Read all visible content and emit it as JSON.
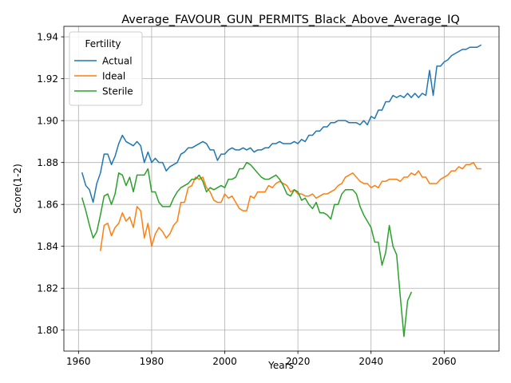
{
  "chart_data": {
    "type": "line",
    "title": "Average_FAVOUR_GUN_PERMITS_Black_Above_Average_IQ",
    "xlabel": "Years",
    "ylabel": "Score(1-2)",
    "xlim": [
      1956,
      2075
    ],
    "ylim": [
      1.79,
      1.945
    ],
    "xticks": [
      1960,
      1980,
      2000,
      2020,
      2040,
      2060
    ],
    "yticks": [
      1.8,
      1.82,
      1.84,
      1.86,
      1.88,
      1.9,
      1.92,
      1.94
    ],
    "grid": true,
    "legend": {
      "title": "Fertility",
      "position": "upper left"
    },
    "series": [
      {
        "name": "Actual",
        "color": "#1f77b4",
        "points": [
          [
            1961,
            1.875
          ],
          [
            1962,
            1.869
          ],
          [
            1963,
            1.867
          ],
          [
            1964,
            1.861
          ],
          [
            1965,
            1.87
          ],
          [
            1966,
            1.875
          ],
          [
            1967,
            1.884
          ],
          [
            1968,
            1.884
          ],
          [
            1969,
            1.879
          ],
          [
            1970,
            1.883
          ],
          [
            1971,
            1.889
          ],
          [
            1972,
            1.893
          ],
          [
            1973,
            1.89
          ],
          [
            1974,
            1.889
          ],
          [
            1975,
            1.888
          ],
          [
            1976,
            1.89
          ],
          [
            1977,
            1.888
          ],
          [
            1978,
            1.88
          ],
          [
            1979,
            1.885
          ],
          [
            1980,
            1.88
          ],
          [
            1981,
            1.882
          ],
          [
            1982,
            1.88
          ],
          [
            1983,
            1.88
          ],
          [
            1984,
            1.876
          ],
          [
            1985,
            1.878
          ],
          [
            1986,
            1.879
          ],
          [
            1987,
            1.88
          ],
          [
            1988,
            1.884
          ],
          [
            1989,
            1.885
          ],
          [
            1990,
            1.887
          ],
          [
            1991,
            1.887
          ],
          [
            1992,
            1.888
          ],
          [
            1993,
            1.889
          ],
          [
            1994,
            1.89
          ],
          [
            1995,
            1.889
          ],
          [
            1996,
            1.886
          ],
          [
            1997,
            1.886
          ],
          [
            1998,
            1.881
          ],
          [
            1999,
            1.884
          ],
          [
            2000,
            1.884
          ],
          [
            2001,
            1.886
          ],
          [
            2002,
            1.887
          ],
          [
            2003,
            1.886
          ],
          [
            2004,
            1.886
          ],
          [
            2005,
            1.887
          ],
          [
            2006,
            1.886
          ],
          [
            2007,
            1.887
          ],
          [
            2008,
            1.885
          ],
          [
            2009,
            1.886
          ],
          [
            2010,
            1.886
          ],
          [
            2011,
            1.887
          ],
          [
            2012,
            1.887
          ],
          [
            2013,
            1.889
          ],
          [
            2014,
            1.889
          ],
          [
            2015,
            1.89
          ],
          [
            2016,
            1.889
          ],
          [
            2017,
            1.889
          ],
          [
            2018,
            1.889
          ],
          [
            2019,
            1.89
          ],
          [
            2020,
            1.889
          ],
          [
            2021,
            1.891
          ],
          [
            2022,
            1.89
          ],
          [
            2023,
            1.893
          ],
          [
            2024,
            1.893
          ],
          [
            2025,
            1.895
          ],
          [
            2026,
            1.895
          ],
          [
            2027,
            1.897
          ],
          [
            2028,
            1.897
          ],
          [
            2029,
            1.899
          ],
          [
            2030,
            1.899
          ],
          [
            2031,
            1.9
          ],
          [
            2032,
            1.9
          ],
          [
            2033,
            1.9
          ],
          [
            2034,
            1.899
          ],
          [
            2035,
            1.899
          ],
          [
            2036,
            1.899
          ],
          [
            2037,
            1.898
          ],
          [
            2038,
            1.9
          ],
          [
            2039,
            1.898
          ],
          [
            2040,
            1.902
          ],
          [
            2041,
            1.901
          ],
          [
            2042,
            1.905
          ],
          [
            2043,
            1.905
          ],
          [
            2044,
            1.909
          ],
          [
            2045,
            1.909
          ],
          [
            2046,
            1.912
          ],
          [
            2047,
            1.911
          ],
          [
            2048,
            1.912
          ],
          [
            2049,
            1.911
          ],
          [
            2050,
            1.913
          ],
          [
            2051,
            1.911
          ],
          [
            2052,
            1.913
          ],
          [
            2053,
            1.911
          ],
          [
            2054,
            1.913
          ],
          [
            2055,
            1.912
          ],
          [
            2056,
            1.924
          ],
          [
            2057,
            1.912
          ],
          [
            2058,
            1.926
          ],
          [
            2059,
            1.926
          ],
          [
            2060,
            1.928
          ],
          [
            2061,
            1.929
          ],
          [
            2062,
            1.931
          ],
          [
            2063,
            1.932
          ],
          [
            2064,
            1.933
          ],
          [
            2065,
            1.934
          ],
          [
            2066,
            1.934
          ],
          [
            2067,
            1.935
          ],
          [
            2068,
            1.935
          ],
          [
            2069,
            1.935
          ],
          [
            2070,
            1.936
          ]
        ]
      },
      {
        "name": "Ideal",
        "color": "#ff7f0e",
        "points": [
          [
            1966,
            1.838
          ],
          [
            1967,
            1.85
          ],
          [
            1968,
            1.851
          ],
          [
            1969,
            1.845
          ],
          [
            1970,
            1.849
          ],
          [
            1971,
            1.851
          ],
          [
            1972,
            1.856
          ],
          [
            1973,
            1.852
          ],
          [
            1974,
            1.854
          ],
          [
            1975,
            1.849
          ],
          [
            1976,
            1.859
          ],
          [
            1977,
            1.857
          ],
          [
            1978,
            1.844
          ],
          [
            1979,
            1.851
          ],
          [
            1980,
            1.84
          ],
          [
            1981,
            1.846
          ],
          [
            1982,
            1.849
          ],
          [
            1983,
            1.847
          ],
          [
            1984,
            1.844
          ],
          [
            1985,
            1.846
          ],
          [
            1986,
            1.85
          ],
          [
            1987,
            1.852
          ],
          [
            1988,
            1.861
          ],
          [
            1989,
            1.861
          ],
          [
            1990,
            1.868
          ],
          [
            1991,
            1.869
          ],
          [
            1992,
            1.873
          ],
          [
            1993,
            1.872
          ],
          [
            1994,
            1.873
          ],
          [
            1995,
            1.868
          ],
          [
            1996,
            1.866
          ],
          [
            1997,
            1.862
          ],
          [
            1998,
            1.861
          ],
          [
            1999,
            1.861
          ],
          [
            2000,
            1.865
          ],
          [
            2001,
            1.863
          ],
          [
            2002,
            1.864
          ],
          [
            2003,
            1.861
          ],
          [
            2004,
            1.858
          ],
          [
            2005,
            1.857
          ],
          [
            2006,
            1.857
          ],
          [
            2007,
            1.864
          ],
          [
            2008,
            1.863
          ],
          [
            2009,
            1.866
          ],
          [
            2010,
            1.866
          ],
          [
            2011,
            1.866
          ],
          [
            2012,
            1.869
          ],
          [
            2013,
            1.868
          ],
          [
            2014,
            1.87
          ],
          [
            2015,
            1.871
          ],
          [
            2016,
            1.87
          ],
          [
            2017,
            1.869
          ],
          [
            2018,
            1.866
          ],
          [
            2019,
            1.867
          ],
          [
            2020,
            1.865
          ],
          [
            2021,
            1.865
          ],
          [
            2022,
            1.864
          ],
          [
            2023,
            1.864
          ],
          [
            2024,
            1.865
          ],
          [
            2025,
            1.863
          ],
          [
            2026,
            1.864
          ],
          [
            2027,
            1.865
          ],
          [
            2028,
            1.865
          ],
          [
            2029,
            1.866
          ],
          [
            2030,
            1.867
          ],
          [
            2031,
            1.869
          ],
          [
            2032,
            1.87
          ],
          [
            2033,
            1.873
          ],
          [
            2034,
            1.874
          ],
          [
            2035,
            1.875
          ],
          [
            2036,
            1.873
          ],
          [
            2037,
            1.871
          ],
          [
            2038,
            1.87
          ],
          [
            2039,
            1.87
          ],
          [
            2040,
            1.868
          ],
          [
            2041,
            1.869
          ],
          [
            2042,
            1.868
          ],
          [
            2043,
            1.871
          ],
          [
            2044,
            1.871
          ],
          [
            2045,
            1.872
          ],
          [
            2046,
            1.872
          ],
          [
            2047,
            1.872
          ],
          [
            2048,
            1.871
          ],
          [
            2049,
            1.873
          ],
          [
            2050,
            1.873
          ],
          [
            2051,
            1.875
          ],
          [
            2052,
            1.874
          ],
          [
            2053,
            1.876
          ],
          [
            2054,
            1.873
          ],
          [
            2055,
            1.873
          ],
          [
            2056,
            1.87
          ],
          [
            2057,
            1.87
          ],
          [
            2058,
            1.87
          ],
          [
            2059,
            1.872
          ],
          [
            2060,
            1.873
          ],
          [
            2061,
            1.874
          ],
          [
            2062,
            1.876
          ],
          [
            2063,
            1.876
          ],
          [
            2064,
            1.878
          ],
          [
            2065,
            1.877
          ],
          [
            2066,
            1.879
          ],
          [
            2067,
            1.879
          ],
          [
            2068,
            1.88
          ],
          [
            2069,
            1.877
          ],
          [
            2070,
            1.877
          ]
        ]
      },
      {
        "name": "Sterile",
        "color": "#2ca02c",
        "points": [
          [
            1961,
            1.863
          ],
          [
            1962,
            1.857
          ],
          [
            1963,
            1.85
          ],
          [
            1964,
            1.844
          ],
          [
            1965,
            1.847
          ],
          [
            1966,
            1.855
          ],
          [
            1967,
            1.864
          ],
          [
            1968,
            1.865
          ],
          [
            1969,
            1.86
          ],
          [
            1970,
            1.865
          ],
          [
            1971,
            1.875
          ],
          [
            1972,
            1.874
          ],
          [
            1973,
            1.869
          ],
          [
            1974,
            1.873
          ],
          [
            1975,
            1.866
          ],
          [
            1976,
            1.874
          ],
          [
            1977,
            1.874
          ],
          [
            1978,
            1.874
          ],
          [
            1979,
            1.877
          ],
          [
            1980,
            1.866
          ],
          [
            1981,
            1.866
          ],
          [
            1982,
            1.861
          ],
          [
            1983,
            1.859
          ],
          [
            1984,
            1.859
          ],
          [
            1985,
            1.859
          ],
          [
            1986,
            1.863
          ],
          [
            1987,
            1.866
          ],
          [
            1988,
            1.868
          ],
          [
            1989,
            1.869
          ],
          [
            1990,
            1.87
          ],
          [
            1991,
            1.872
          ],
          [
            1992,
            1.872
          ],
          [
            1993,
            1.874
          ],
          [
            1994,
            1.871
          ],
          [
            1995,
            1.866
          ],
          [
            1996,
            1.868
          ],
          [
            1997,
            1.867
          ],
          [
            1998,
            1.868
          ],
          [
            1999,
            1.869
          ],
          [
            2000,
            1.868
          ],
          [
            2001,
            1.872
          ],
          [
            2002,
            1.872
          ],
          [
            2003,
            1.873
          ],
          [
            2004,
            1.877
          ],
          [
            2005,
            1.877
          ],
          [
            2006,
            1.88
          ],
          [
            2007,
            1.879
          ],
          [
            2008,
            1.877
          ],
          [
            2009,
            1.875
          ],
          [
            2010,
            1.873
          ],
          [
            2011,
            1.872
          ],
          [
            2012,
            1.872
          ],
          [
            2013,
            1.873
          ],
          [
            2014,
            1.874
          ],
          [
            2015,
            1.872
          ],
          [
            2016,
            1.869
          ],
          [
            2017,
            1.865
          ],
          [
            2018,
            1.864
          ],
          [
            2019,
            1.867
          ],
          [
            2020,
            1.866
          ],
          [
            2021,
            1.862
          ],
          [
            2022,
            1.863
          ],
          [
            2023,
            1.86
          ],
          [
            2024,
            1.858
          ],
          [
            2025,
            1.861
          ],
          [
            2026,
            1.856
          ],
          [
            2027,
            1.856
          ],
          [
            2028,
            1.855
          ],
          [
            2029,
            1.853
          ],
          [
            2030,
            1.86
          ],
          [
            2031,
            1.86
          ],
          [
            2032,
            1.865
          ],
          [
            2033,
            1.867
          ],
          [
            2034,
            1.867
          ],
          [
            2035,
            1.867
          ],
          [
            2036,
            1.865
          ],
          [
            2037,
            1.859
          ],
          [
            2038,
            1.855
          ],
          [
            2039,
            1.852
          ],
          [
            2040,
            1.849
          ],
          [
            2041,
            1.842
          ],
          [
            2042,
            1.842
          ],
          [
            2043,
            1.831
          ],
          [
            2044,
            1.837
          ],
          [
            2045,
            1.85
          ],
          [
            2046,
            1.84
          ],
          [
            2047,
            1.836
          ],
          [
            2048,
            1.816
          ],
          [
            2049,
            1.797
          ],
          [
            2050,
            1.814
          ],
          [
            2051,
            1.818
          ]
        ]
      }
    ]
  }
}
